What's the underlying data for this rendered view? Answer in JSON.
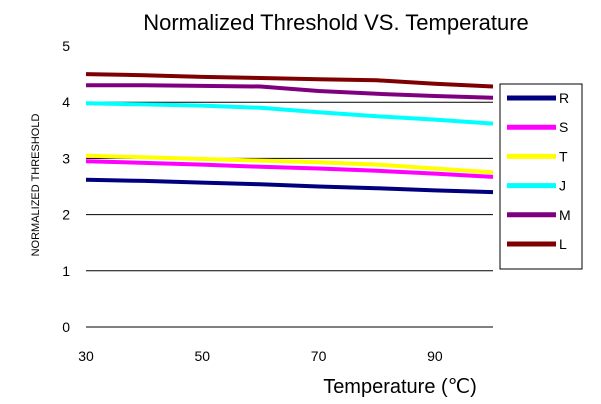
{
  "chart_data": {
    "type": "line",
    "title": "Normalized Threshold VS. Temperature",
    "xlabel": "Temperature (℃)",
    "ylabel": "NORMALIZED THRESHOLD",
    "xlim": [
      30,
      100
    ],
    "ylim": [
      0,
      5
    ],
    "xticks": [
      "30",
      "50",
      "70",
      "90"
    ],
    "yticks": [
      "0",
      "1",
      "2",
      "3",
      "4",
      "5"
    ],
    "grid": "horizontal",
    "legend_position": "right",
    "series": [
      {
        "name": "R",
        "color": "#00007f",
        "x": [
          30,
          40,
          50,
          60,
          70,
          80,
          90,
          100
        ],
        "y": [
          2.62,
          2.6,
          2.57,
          2.54,
          2.5,
          2.47,
          2.43,
          2.4
        ]
      },
      {
        "name": "S",
        "color": "#ff00ff",
        "x": [
          30,
          40,
          50,
          60,
          70,
          80,
          90,
          100
        ],
        "y": [
          2.95,
          2.92,
          2.89,
          2.85,
          2.82,
          2.78,
          2.73,
          2.67
        ]
      },
      {
        "name": "T",
        "color": "#ffff00",
        "x": [
          30,
          40,
          50,
          60,
          70,
          80,
          90,
          100
        ],
        "y": [
          3.05,
          3.02,
          2.99,
          2.96,
          2.93,
          2.89,
          2.82,
          2.75
        ]
      },
      {
        "name": "J",
        "color": "#00ffff",
        "x": [
          30,
          40,
          50,
          60,
          70,
          80,
          90,
          100
        ],
        "y": [
          3.98,
          3.96,
          3.94,
          3.9,
          3.82,
          3.75,
          3.69,
          3.62
        ]
      },
      {
        "name": "M",
        "color": "#7f007f",
        "x": [
          30,
          40,
          50,
          60,
          70,
          80,
          90,
          100
        ],
        "y": [
          4.3,
          4.3,
          4.29,
          4.28,
          4.2,
          4.15,
          4.11,
          4.08
        ]
      },
      {
        "name": "L",
        "color": "#7f0000",
        "x": [
          30,
          40,
          50,
          60,
          70,
          80,
          90,
          100
        ],
        "y": [
          4.5,
          4.48,
          4.45,
          4.43,
          4.41,
          4.39,
          4.33,
          4.28
        ]
      }
    ]
  }
}
